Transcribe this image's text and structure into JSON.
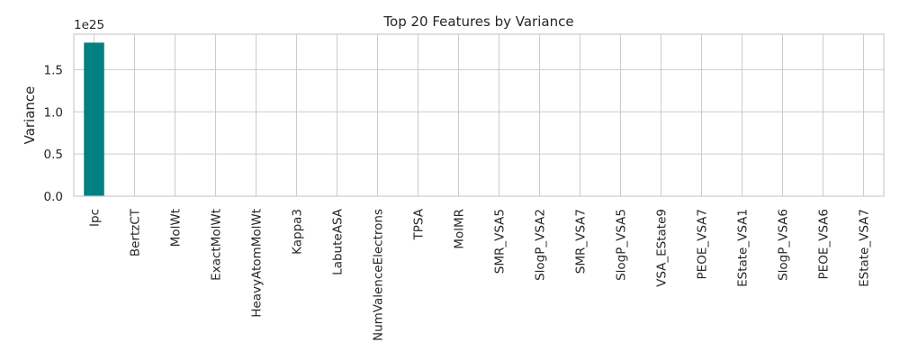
{
  "chart_data": {
    "type": "bar",
    "title": "Top 20 Features by Variance",
    "xlabel": "",
    "ylabel": "Variance",
    "y_offset_label": "1e25",
    "ylim": [
      0,
      1.92e+25
    ],
    "yticks": [
      0,
      5e+24,
      1e+25,
      1.5e+25
    ],
    "ytick_labels": [
      "0.0",
      "0.5",
      "1.0",
      "1.5"
    ],
    "grid": true,
    "bar_color": "#008080",
    "categories": [
      "Ipc",
      "BertzCT",
      "MolWt",
      "ExactMolWt",
      "HeavyAtomMolWt",
      "Kappa3",
      "LabuteASA",
      "NumValenceElectrons",
      "TPSA",
      "MolMR",
      "SMR_VSA5",
      "SlogP_VSA2",
      "SMR_VSA7",
      "SlogP_VSA5",
      "VSA_EState9",
      "PEOE_VSA7",
      "EState_VSA1",
      "SlogP_VSA6",
      "PEOE_VSA6",
      "EState_VSA7"
    ],
    "values": [
      1.82e+25,
      0,
      0,
      0,
      0,
      0,
      0,
      0,
      0,
      0,
      0,
      0,
      0,
      0,
      0,
      0,
      0,
      0,
      0,
      0
    ]
  }
}
